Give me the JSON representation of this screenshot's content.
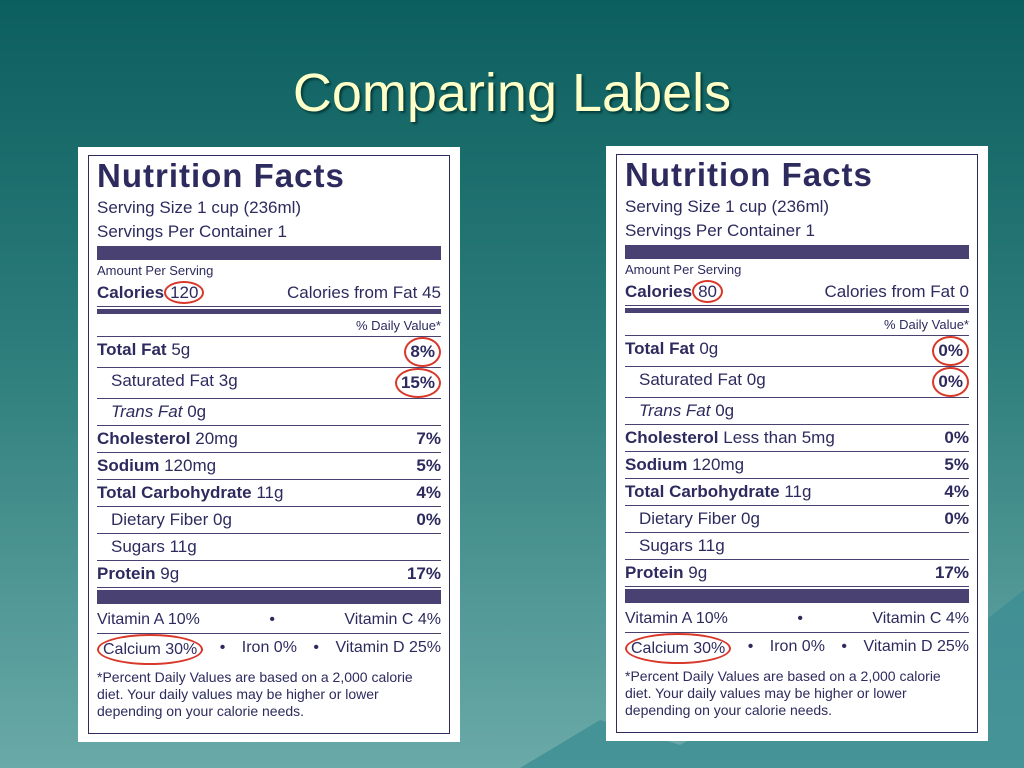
{
  "title": "Comparing Labels",
  "labels": [
    {
      "heading": "Nutrition Facts",
      "serving_size": "Serving Size 1 cup (236ml)",
      "servings": "Servings Per Container 1",
      "amount_per_serving": "Amount Per Serving",
      "calories_label": "Calories",
      "calories": "120",
      "calories_from_fat": "Calories from Fat 45",
      "daily_value_header": "% Daily Value*",
      "rows": [
        {
          "name": "Total Fat",
          "amount": "5g",
          "dv": "8%",
          "bold": true,
          "circled": true
        },
        {
          "name": "Saturated Fat",
          "amount": "3g",
          "dv": "15%",
          "indent": true,
          "circled": true
        },
        {
          "name": "Trans Fat",
          "amount": "0g",
          "indent": true,
          "italic": true
        },
        {
          "name": "Cholesterol",
          "amount": "20mg",
          "dv": "7%",
          "bold": true
        },
        {
          "name": "Sodium",
          "amount": "120mg",
          "dv": "5%",
          "bold": true
        },
        {
          "name": "Total Carbohydrate",
          "amount": "11g",
          "dv": "4%",
          "bold": true
        },
        {
          "name": "Dietary Fiber",
          "amount": "0g",
          "dv": "0%",
          "indent": true
        },
        {
          "name": "Sugars",
          "amount": "11g",
          "indent": true
        },
        {
          "name": "Protein",
          "amount": "9g",
          "dv": "17%",
          "bold": true
        }
      ],
      "vitamin_a": "Vitamin A 10%",
      "vitamin_c": "Vitamin C 4%",
      "calcium": "Calcium 30%",
      "iron": "Iron 0%",
      "vitamin_d": "Vitamin D 25%",
      "footnote": "*Percent Daily Values are based on a 2,000 calorie diet. Your daily values may be higher or lower depending on your calorie needs."
    },
    {
      "heading": "Nutrition Facts",
      "serving_size": "Serving Size 1 cup (236ml)",
      "servings": "Servings Per Container 1",
      "amount_per_serving": "Amount Per Serving",
      "calories_label": "Calories",
      "calories": "80",
      "calories_from_fat": "Calories from Fat 0",
      "daily_value_header": "% Daily Value*",
      "rows": [
        {
          "name": "Total Fat",
          "amount": "0g",
          "dv": "0%",
          "bold": true,
          "circled": true
        },
        {
          "name": "Saturated Fat",
          "amount": "0g",
          "dv": "0%",
          "indent": true,
          "circled": true
        },
        {
          "name": "Trans Fat",
          "amount": "0g",
          "indent": true,
          "italic": true
        },
        {
          "name": "Cholesterol",
          "amount": "Less than 5mg",
          "dv": "0%",
          "bold": true
        },
        {
          "name": "Sodium",
          "amount": "120mg",
          "dv": "5%",
          "bold": true
        },
        {
          "name": "Total Carbohydrate",
          "amount": "11g",
          "dv": "4%",
          "bold": true
        },
        {
          "name": "Dietary Fiber",
          "amount": "0g",
          "dv": "0%",
          "indent": true
        },
        {
          "name": "Sugars",
          "amount": "11g",
          "indent": true
        },
        {
          "name": "Protein",
          "amount": "9g",
          "dv": "17%",
          "bold": true
        }
      ],
      "vitamin_a": "Vitamin A 10%",
      "vitamin_c": "Vitamin C 4%",
      "calcium": "Calcium 30%",
      "iron": "Iron 0%",
      "vitamin_d": "Vitamin D 25%",
      "footnote": "*Percent Daily Values are based on a 2,000 calorie diet. Your daily values may be higher or lower depending on your calorie needs."
    }
  ]
}
